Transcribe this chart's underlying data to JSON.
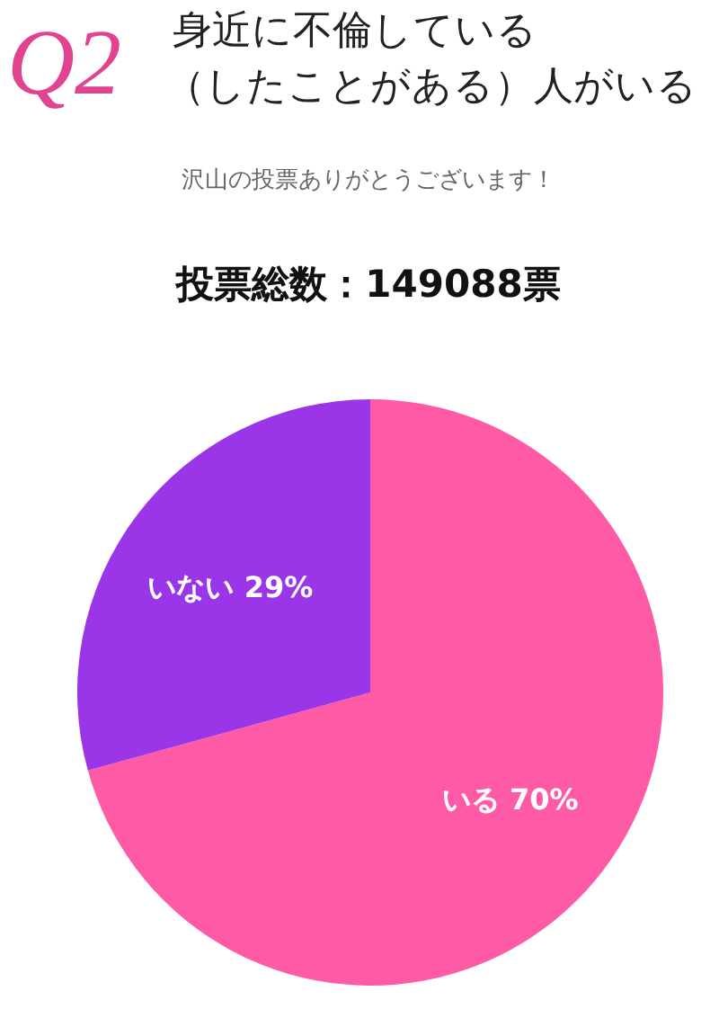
{
  "chart_data": {
    "type": "pie",
    "title": "身近に不倫している（したことがある）人がいる",
    "subtitle": "沢山の投票ありがとうございます！",
    "annotations": [
      "Q2",
      "投票総数：149088票"
    ],
    "categories": [
      "いる",
      "いない"
    ],
    "values": [
      70,
      29
    ],
    "value_labels": [
      "70%",
      "29%"
    ],
    "colors": [
      "#ff5aa5",
      "#9a36e8"
    ]
  }
}
